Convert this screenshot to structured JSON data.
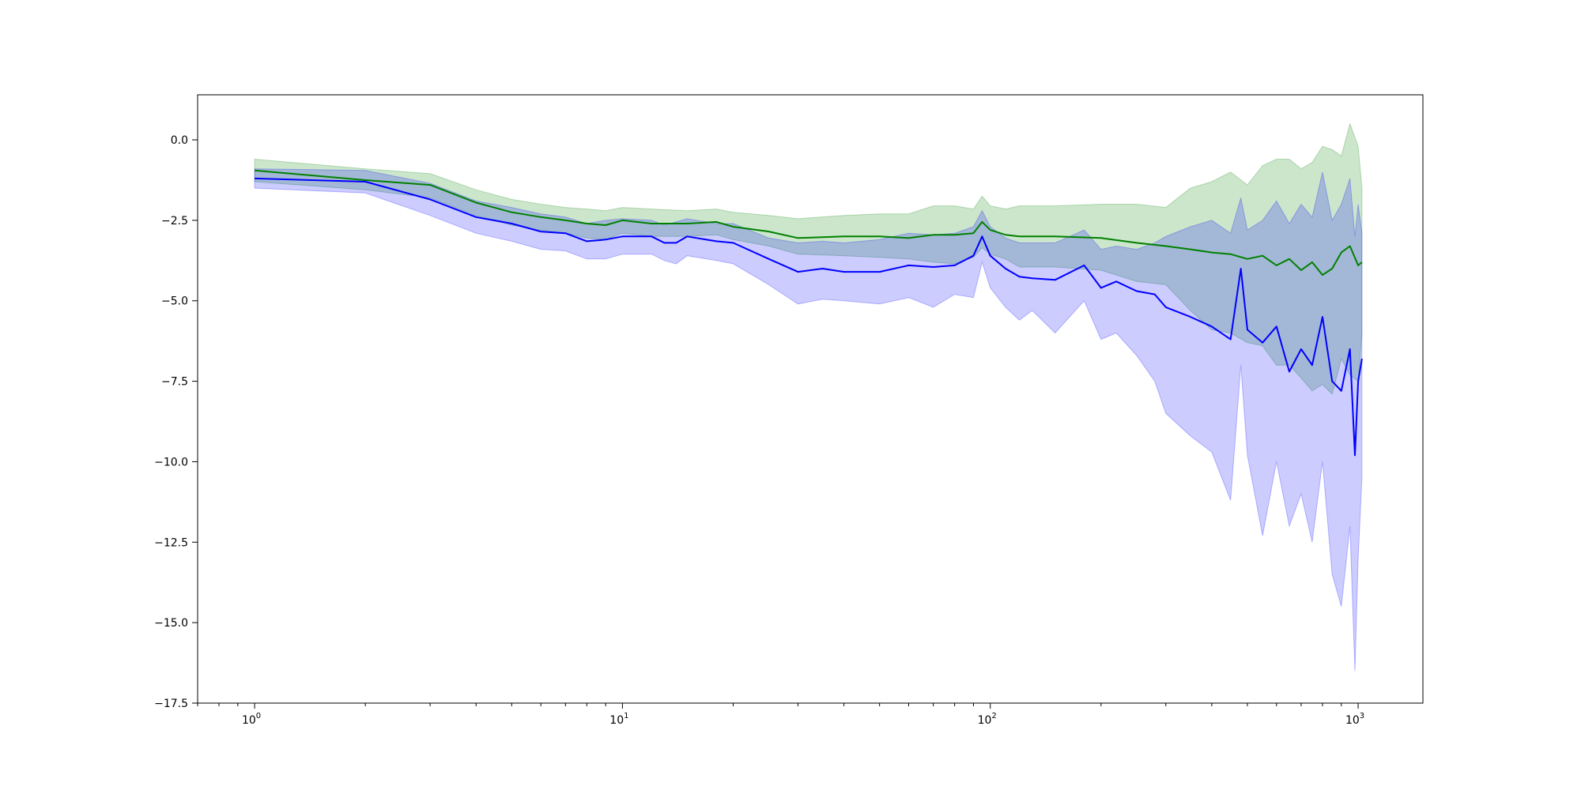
{
  "chart_data": {
    "type": "line",
    "title": "",
    "xlabel": "",
    "ylabel": "",
    "xscale": "log",
    "xlim": [
      0.7,
      1500
    ],
    "ylim": [
      -17.5,
      1.4
    ],
    "grid": false,
    "legend": "none",
    "x_ticks": [
      {
        "value": 1,
        "label_base": "10",
        "label_exp": "0"
      },
      {
        "value": 10,
        "label_base": "10",
        "label_exp": "1"
      },
      {
        "value": 100,
        "label_base": "10",
        "label_exp": "2"
      },
      {
        "value": 1000,
        "label_base": "10",
        "label_exp": "3"
      }
    ],
    "y_ticks": [
      {
        "value": 0.0,
        "label": "0.0"
      },
      {
        "value": -2.5,
        "label": "−2.5"
      },
      {
        "value": -5.0,
        "label": "−5.0"
      },
      {
        "value": -7.5,
        "label": "−7.5"
      },
      {
        "value": -10.0,
        "label": "−10.0"
      },
      {
        "value": -12.5,
        "label": "−12.5"
      },
      {
        "value": -15.0,
        "label": "−15.0"
      },
      {
        "value": -17.5,
        "label": "−17.5"
      }
    ],
    "series": [
      {
        "color": "#008000",
        "band_color": "#008000",
        "band_opacity": 0.2,
        "x": [
          1,
          2,
          3,
          4,
          5,
          6,
          7,
          8,
          9,
          10,
          12,
          15,
          18,
          20,
          25,
          30,
          40,
          50,
          60,
          70,
          80,
          90,
          95,
          100,
          110,
          120,
          150,
          200,
          250,
          300,
          350,
          400,
          450,
          500,
          550,
          600,
          650,
          700,
          750,
          800,
          850,
          900,
          950,
          1000,
          1024
        ],
        "values": [
          -0.95,
          -1.25,
          -1.4,
          -1.95,
          -2.25,
          -2.4,
          -2.5,
          -2.6,
          -2.65,
          -2.5,
          -2.6,
          -2.6,
          -2.55,
          -2.7,
          -2.85,
          -3.05,
          -3.0,
          -3.0,
          -3.05,
          -2.95,
          -2.95,
          -2.9,
          -2.55,
          -2.8,
          -2.95,
          -3.0,
          -3.0,
          -3.05,
          -3.2,
          -3.3,
          -3.4,
          -3.5,
          -3.55,
          -3.7,
          -3.6,
          -3.9,
          -3.7,
          -4.05,
          -3.8,
          -4.2,
          -4.0,
          -3.5,
          -3.3,
          -3.9,
          -3.8
        ],
        "upper": [
          -0.6,
          -0.9,
          -1.05,
          -1.55,
          -1.85,
          -2.0,
          -2.1,
          -2.15,
          -2.2,
          -2.1,
          -2.15,
          -2.2,
          -2.15,
          -2.25,
          -2.35,
          -2.45,
          -2.35,
          -2.3,
          -2.3,
          -2.05,
          -2.05,
          -2.15,
          -1.75,
          -2.05,
          -2.15,
          -2.05,
          -2.05,
          -2.0,
          -2.0,
          -2.1,
          -1.5,
          -1.3,
          -1.0,
          -1.4,
          -0.8,
          -0.6,
          -0.6,
          -0.9,
          -0.7,
          -0.2,
          -0.3,
          -0.5,
          0.5,
          -0.2,
          -1.5
        ],
        "lower": [
          -1.3,
          -1.55,
          -1.8,
          -2.35,
          -2.65,
          -2.8,
          -2.9,
          -3.05,
          -3.1,
          -2.9,
          -3.0,
          -3.0,
          -2.95,
          -3.1,
          -3.3,
          -3.55,
          -3.6,
          -3.65,
          -3.7,
          -3.8,
          -3.85,
          -3.65,
          -3.35,
          -3.55,
          -3.7,
          -3.95,
          -3.95,
          -4.05,
          -4.4,
          -4.5,
          -5.3,
          -5.9,
          -6.0,
          -6.3,
          -6.4,
          -7.0,
          -7.0,
          -7.4,
          -7.8,
          -7.6,
          -7.9,
          -6.8,
          -7.3,
          -7.5,
          -6.0
        ]
      },
      {
        "color": "#0000ff",
        "band_color": "#0000ff",
        "band_opacity": 0.2,
        "x": [
          1,
          2,
          3,
          4,
          5,
          6,
          7,
          8,
          9,
          10,
          12,
          13,
          14,
          15,
          18,
          20,
          25,
          30,
          35,
          40,
          50,
          60,
          70,
          80,
          90,
          95,
          100,
          110,
          120,
          130,
          150,
          180,
          200,
          220,
          250,
          280,
          300,
          350,
          400,
          450,
          480,
          500,
          550,
          600,
          650,
          700,
          750,
          800,
          850,
          900,
          950,
          980,
          1000,
          1024
        ],
        "values": [
          -1.2,
          -1.3,
          -1.85,
          -2.4,
          -2.6,
          -2.85,
          -2.9,
          -3.15,
          -3.1,
          -3.0,
          -3.0,
          -3.2,
          -3.2,
          -3.0,
          -3.15,
          -3.2,
          -3.7,
          -4.1,
          -4.0,
          -4.1,
          -4.1,
          -3.9,
          -3.95,
          -3.9,
          -3.6,
          -3.0,
          -3.6,
          -4.0,
          -4.25,
          -4.3,
          -4.35,
          -3.9,
          -4.6,
          -4.4,
          -4.7,
          -4.8,
          -5.2,
          -5.5,
          -5.8,
          -6.2,
          -4.0,
          -5.9,
          -6.3,
          -5.8,
          -7.2,
          -6.5,
          -7.0,
          -5.5,
          -7.5,
          -7.8,
          -6.5,
          -9.8,
          -7.5,
          -6.8
        ],
        "upper": [
          -0.9,
          -0.95,
          -1.35,
          -1.9,
          -2.1,
          -2.3,
          -2.4,
          -2.6,
          -2.5,
          -2.45,
          -2.5,
          -2.65,
          -2.55,
          -2.45,
          -2.6,
          -2.6,
          -3.05,
          -3.2,
          -3.15,
          -3.2,
          -3.1,
          -2.9,
          -2.95,
          -2.9,
          -2.7,
          -2.2,
          -2.7,
          -3.05,
          -3.2,
          -3.2,
          -3.2,
          -2.8,
          -3.4,
          -3.3,
          -3.4,
          -3.2,
          -3.0,
          -2.7,
          -2.5,
          -2.9,
          -1.8,
          -2.8,
          -2.5,
          -1.9,
          -2.6,
          -2.0,
          -2.4,
          -1.0,
          -2.5,
          -2.0,
          -1.2,
          -3.0,
          -2.0,
          -2.9
        ],
        "lower": [
          -1.5,
          -1.65,
          -2.35,
          -2.9,
          -3.15,
          -3.4,
          -3.45,
          -3.7,
          -3.7,
          -3.55,
          -3.55,
          -3.75,
          -3.85,
          -3.6,
          -3.75,
          -3.85,
          -4.5,
          -5.1,
          -4.95,
          -5.0,
          -5.1,
          -4.9,
          -5.2,
          -4.8,
          -4.9,
          -3.8,
          -4.6,
          -5.2,
          -5.6,
          -5.3,
          -6.0,
          -5.0,
          -6.2,
          -6.0,
          -6.7,
          -7.5,
          -8.5,
          -9.2,
          -9.7,
          -11.2,
          -7.0,
          -9.8,
          -12.3,
          -10.0,
          -12.0,
          -11.0,
          -12.5,
          -10.0,
          -13.5,
          -14.5,
          -12.0,
          -16.5,
          -13.0,
          -10.5
        ]
      }
    ]
  }
}
